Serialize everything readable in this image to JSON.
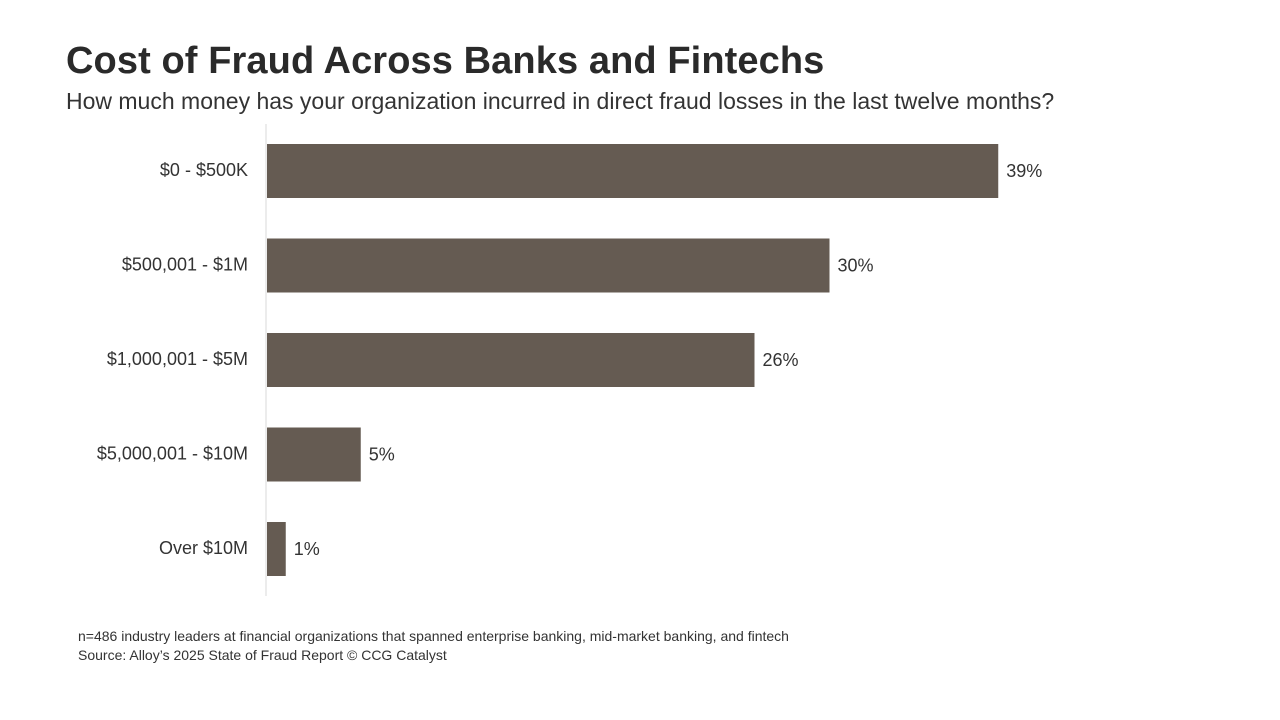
{
  "header": {
    "title": "Cost of Fraud Across Banks and Fintechs",
    "subtitle": "How much money has your organization incurred in direct fraud losses in the last twelve months?"
  },
  "footer": {
    "sample_note": "n=486 industry leaders at financial organizations that spanned enterprise banking, mid-market banking, and fintech",
    "source": "Source: Alloy’s 2025 State of Fraud Report © CCG Catalyst"
  },
  "chart_data": {
    "type": "bar",
    "orientation": "horizontal",
    "categories": [
      "$0 - $500K",
      "$500,001 - $1M",
      "$1,000,001 - $5M",
      "$5,000,001 - $10M",
      "Over $10M"
    ],
    "values": [
      39,
      30,
      26,
      5,
      1
    ],
    "value_labels": [
      "39%",
      "30%",
      "26%",
      "5%",
      "1%"
    ],
    "title": "Cost of Fraud Across Banks and Fintechs",
    "subtitle": "How much money has your organization incurred in direct fraud losses in the last twelve months?",
    "xlabel": "",
    "ylabel": "",
    "xlim": [
      0,
      50
    ],
    "grid": false,
    "legend": "none",
    "bar_color": "#655b52",
    "axis_color": "#d9d9d9"
  }
}
